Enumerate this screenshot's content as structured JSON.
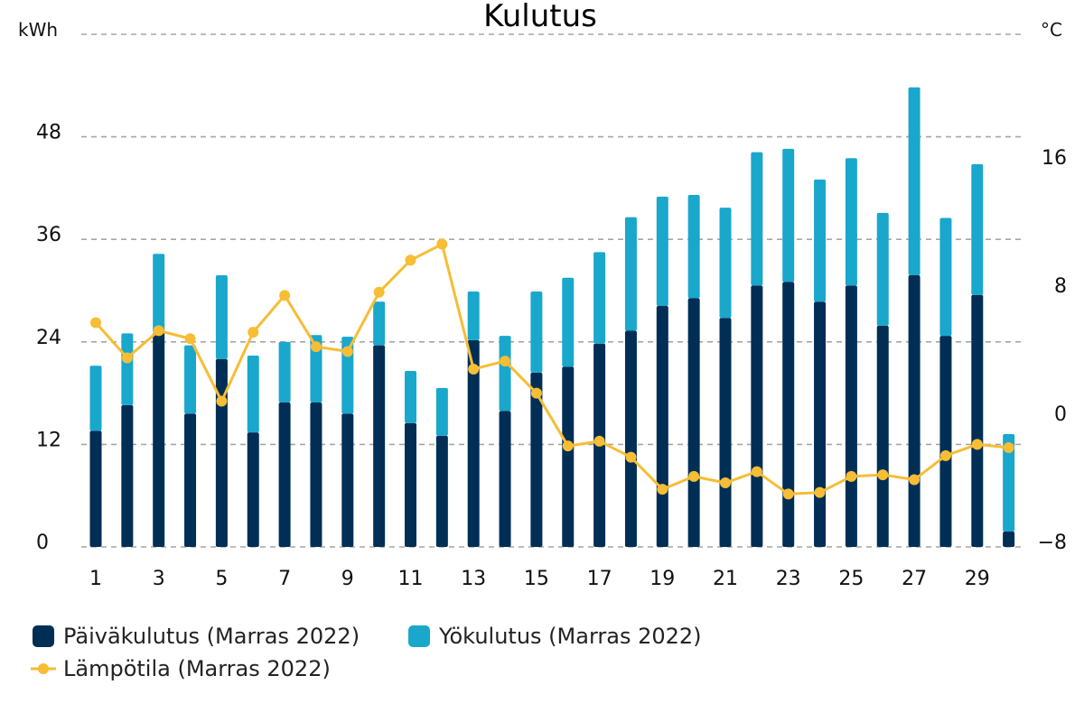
{
  "chart_data": {
    "type": "bar",
    "title": "Kulutus",
    "stacked": true,
    "y_unit_left": "kWh",
    "y_unit_right": "°C",
    "ylim_left": [
      0,
      60
    ],
    "yticks_left": [
      0,
      12,
      24,
      36,
      48
    ],
    "ylim_right": [
      -8,
      24
    ],
    "yticks_right": [
      -8,
      0,
      8,
      16
    ],
    "grid": true,
    "legend_position": "bottom-left",
    "x": [
      1,
      2,
      3,
      4,
      5,
      6,
      7,
      8,
      9,
      10,
      11,
      12,
      13,
      14,
      15,
      16,
      17,
      18,
      19,
      20,
      21,
      22,
      23,
      24,
      25,
      26,
      27,
      28,
      29,
      30
    ],
    "x_tick_labels": [
      "1",
      "3",
      "5",
      "7",
      "9",
      "11",
      "13",
      "15",
      "17",
      "19",
      "21",
      "23",
      "25",
      "27",
      "29"
    ],
    "series": [
      {
        "name": "Päiväkulutus (Marras 2022)",
        "kind": "bar",
        "axis": "left",
        "color": "#002e55",
        "values": [
          13.6,
          16.6,
          25.1,
          15.6,
          22.0,
          13.4,
          16.9,
          16.9,
          15.6,
          23.6,
          14.5,
          13.0,
          24.2,
          15.9,
          20.4,
          21.1,
          23.8,
          25.3,
          28.2,
          29.1,
          26.8,
          30.6,
          31.0,
          28.7,
          30.6,
          25.9,
          31.8,
          24.7,
          29.5,
          1.8
        ]
      },
      {
        "name": "Yökulutus (Marras 2022)",
        "kind": "bar",
        "axis": "left",
        "color": "#1aa7cc",
        "values": [
          7.6,
          8.4,
          9.2,
          8.0,
          9.8,
          9.0,
          7.1,
          7.9,
          9.0,
          5.1,
          6.1,
          5.6,
          5.7,
          8.8,
          9.5,
          10.4,
          10.7,
          13.3,
          12.8,
          12.1,
          12.9,
          15.6,
          15.6,
          14.3,
          14.9,
          13.2,
          22.0,
          13.8,
          15.3,
          11.4
        ]
      },
      {
        "name": "Lämpötila (Marras 2022)",
        "kind": "line",
        "axis": "right",
        "color": "#f6bd35",
        "values": [
          6.0,
          3.8,
          5.5,
          5.0,
          1.1,
          5.4,
          7.7,
          4.5,
          4.2,
          7.9,
          9.9,
          10.9,
          3.1,
          3.6,
          1.6,
          -1.7,
          -1.4,
          -2.4,
          -4.4,
          -3.6,
          -4.0,
          -3.3,
          -4.7,
          -4.6,
          -3.6,
          -3.5,
          -3.8,
          -2.3,
          -1.6,
          -1.8
        ]
      }
    ]
  }
}
